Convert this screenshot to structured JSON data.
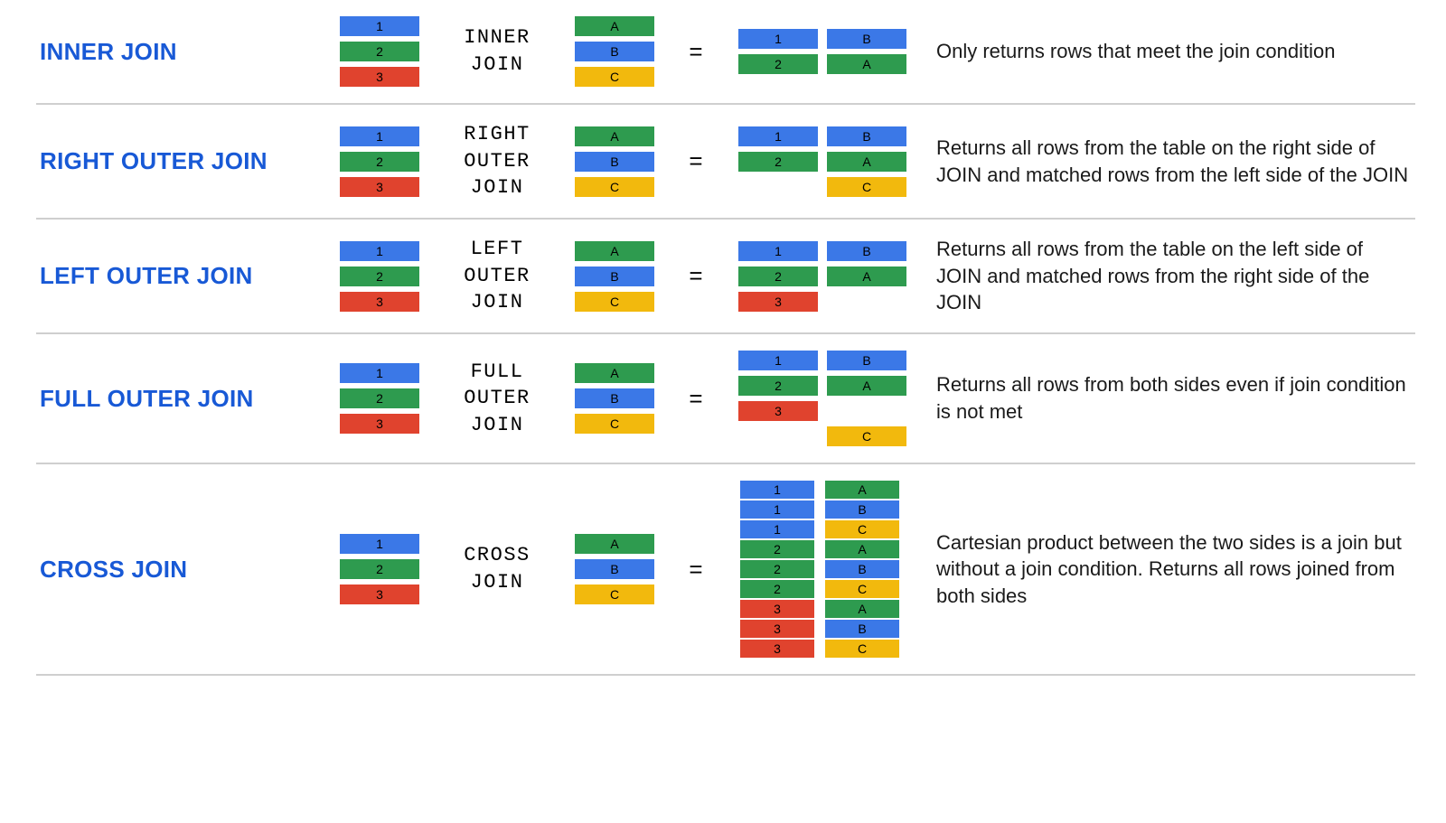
{
  "colors": {
    "blue": "#3b78e7",
    "green": "#2e9b4f",
    "red": "#e0432e",
    "yellow": "#f2b90d",
    "title": "#1859d6",
    "text": "#1a1a1a",
    "border": "#cfcfcf",
    "black": "#000000"
  },
  "left_table": [
    {
      "v": "1",
      "c": "blue"
    },
    {
      "v": "2",
      "c": "green"
    },
    {
      "v": "3",
      "c": "red"
    }
  ],
  "right_table": [
    {
      "v": "A",
      "c": "green"
    },
    {
      "v": "B",
      "c": "blue"
    },
    {
      "v": "C",
      "c": "yellow"
    }
  ],
  "joins": [
    {
      "title": "INNER JOIN",
      "op": "INNER\nJOIN",
      "desc": "Only returns rows that meet the join condition",
      "compact": false,
      "result": [
        [
          {
            "v": "1",
            "c": "blue"
          },
          {
            "v": "B",
            "c": "blue"
          }
        ],
        [
          {
            "v": "2",
            "c": "green"
          },
          {
            "v": "A",
            "c": "green"
          }
        ]
      ]
    },
    {
      "title": "RIGHT OUTER JOIN",
      "op": "RIGHT\nOUTER\nJOIN",
      "desc": "Returns all rows from the table on the right side of JOIN and matched rows from the left side of the JOIN",
      "compact": false,
      "result": [
        [
          {
            "v": "1",
            "c": "blue"
          },
          {
            "v": "B",
            "c": "blue"
          }
        ],
        [
          {
            "v": "2",
            "c": "green"
          },
          {
            "v": "A",
            "c": "green"
          }
        ],
        [
          null,
          {
            "v": "C",
            "c": "yellow"
          }
        ]
      ]
    },
    {
      "title": "LEFT OUTER JOIN",
      "op": "LEFT\nOUTER\nJOIN",
      "desc": "Returns all rows from the table on the left side of JOIN and matched rows from the right side of the JOIN",
      "compact": false,
      "result": [
        [
          {
            "v": "1",
            "c": "blue"
          },
          {
            "v": "B",
            "c": "blue"
          }
        ],
        [
          {
            "v": "2",
            "c": "green"
          },
          {
            "v": "A",
            "c": "green"
          }
        ],
        [
          {
            "v": "3",
            "c": "red"
          },
          null
        ]
      ]
    },
    {
      "title": "FULL OUTER JOIN",
      "op": "FULL\nOUTER\nJOIN",
      "desc": "Returns all rows from both sides even if join condition is not met",
      "compact": false,
      "result": [
        [
          {
            "v": "1",
            "c": "blue"
          },
          {
            "v": "B",
            "c": "blue"
          }
        ],
        [
          {
            "v": "2",
            "c": "green"
          },
          {
            "v": "A",
            "c": "green"
          }
        ],
        [
          {
            "v": "3",
            "c": "red"
          },
          null
        ],
        [
          null,
          {
            "v": "C",
            "c": "yellow"
          }
        ]
      ]
    },
    {
      "title": "CROSS JOIN",
      "op": "CROSS\nJOIN",
      "desc": "Cartesian product between the two sides is a join but without a join condition. Returns all rows joined from both sides",
      "compact": true,
      "result": [
        [
          {
            "v": "1",
            "c": "blue"
          },
          {
            "v": "A",
            "c": "green"
          }
        ],
        [
          {
            "v": "1",
            "c": "blue"
          },
          {
            "v": "B",
            "c": "blue"
          }
        ],
        [
          {
            "v": "1",
            "c": "blue"
          },
          {
            "v": "C",
            "c": "yellow"
          }
        ],
        [
          {
            "v": "2",
            "c": "green"
          },
          {
            "v": "A",
            "c": "green"
          }
        ],
        [
          {
            "v": "2",
            "c": "green"
          },
          {
            "v": "B",
            "c": "blue"
          }
        ],
        [
          {
            "v": "2",
            "c": "green"
          },
          {
            "v": "C",
            "c": "yellow"
          }
        ],
        [
          {
            "v": "3",
            "c": "red"
          },
          {
            "v": "A",
            "c": "green"
          }
        ],
        [
          {
            "v": "3",
            "c": "red"
          },
          {
            "v": "B",
            "c": "blue"
          }
        ],
        [
          {
            "v": "3",
            "c": "red"
          },
          {
            "v": "C",
            "c": "yellow"
          }
        ]
      ]
    }
  ]
}
